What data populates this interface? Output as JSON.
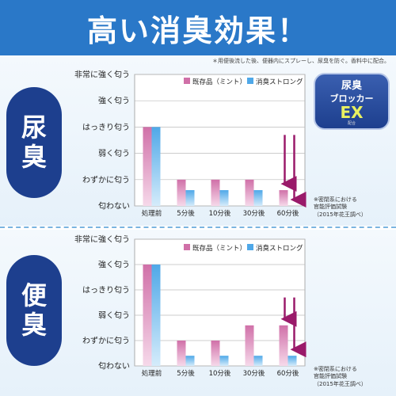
{
  "header": {
    "title": "高い消臭効果！"
  },
  "note_top": "＊用便後流した後、便器内にスプレーし、尿臭を防ぐ。香料中に配合。",
  "logo": {
    "line1": "尿臭",
    "line2": "ブロッカー",
    "line3": "EX",
    "line4": "配合"
  },
  "colors": {
    "header": "#2a78c8",
    "badge": "#1d3f8e",
    "series1": "#d070a8",
    "series2": "#4fa8e8",
    "arrow": "#9a1a6a"
  },
  "chart_data": [
    {
      "type": "bar",
      "panel_label": [
        "尿",
        "臭"
      ],
      "y_levels": [
        "匂わない",
        "わずかに匂う",
        "弱く匂う",
        "はっきり匂う",
        "強く匂う",
        "非常に強く匂う"
      ],
      "ylim": [
        0,
        5
      ],
      "categories": [
        "処理前",
        "5分後",
        "10分後",
        "30分後",
        "60分後"
      ],
      "series": [
        {
          "name": "既存品（ミント）",
          "values": [
            3.0,
            1.0,
            1.0,
            1.0,
            0.6
          ]
        },
        {
          "name": "消臭ストロング",
          "values": [
            3.0,
            0.6,
            0.6,
            0.6,
            0.0
          ]
        }
      ],
      "footnote": [
        "※密閉系における",
        "官能評価試験",
        "（2015年花王調べ）"
      ]
    },
    {
      "type": "bar",
      "panel_label": [
        "便",
        "臭"
      ],
      "y_levels": [
        "匂わない",
        "わずかに匂う",
        "弱く匂う",
        "はっきり匂う",
        "強く匂う",
        "非常に強く匂う"
      ],
      "ylim": [
        0,
        5
      ],
      "categories": [
        "処理前",
        "5分後",
        "10分後",
        "30分後",
        "60分後"
      ],
      "series": [
        {
          "name": "既存品（ミント）",
          "values": [
            4.0,
            1.0,
            1.0,
            1.6,
            1.6
          ]
        },
        {
          "name": "消臭ストロング",
          "values": [
            4.0,
            0.4,
            0.4,
            0.4,
            0.4
          ]
        }
      ],
      "footnote": [
        "※密閉系における",
        "官能評価試験",
        "（2015年花王調べ）"
      ]
    }
  ]
}
